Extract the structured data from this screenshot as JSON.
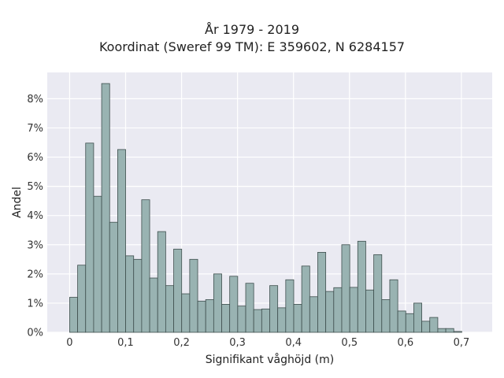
{
  "chart_data": {
    "type": "bar",
    "title_line1": "År 1979 - 2019",
    "title_line2": "Koordinat (Sweref 99 TM): E 359602, N 6284157",
    "xlabel": "Signifikant våghöjd (m)",
    "ylabel": "Andel",
    "x_ticks": [
      "0",
      "0,1",
      "0,2",
      "0,3",
      "0,4",
      "0,5",
      "0,6",
      "0,7"
    ],
    "y_ticks": [
      "0%",
      "1%",
      "2%",
      "3%",
      "4%",
      "5%",
      "6%",
      "7%",
      "8%"
    ],
    "xlim": [
      -0.04,
      0.755
    ],
    "ylim": [
      0,
      8.9
    ],
    "bin_width": 0.0143,
    "bin_start": 0,
    "values": [
      1.2,
      2.3,
      6.48,
      4.66,
      8.52,
      3.77,
      6.26,
      2.62,
      2.5,
      4.54,
      1.86,
      3.45,
      1.6,
      2.85,
      1.32,
      2.5,
      1.07,
      1.12,
      2.0,
      0.96,
      1.92,
      0.9,
      1.68,
      0.78,
      0.8,
      1.6,
      0.84,
      1.8,
      0.96,
      2.27,
      1.22,
      2.74,
      1.4,
      1.53,
      3.0,
      1.54,
      3.12,
      1.45,
      2.66,
      1.12,
      1.8,
      0.73,
      0.64,
      1.0,
      0.38,
      0.51,
      0.13,
      0.13,
      0.03
    ],
    "colors": {
      "bar": "#99b3b2",
      "bar_edge": "#3f4f4e",
      "plot_bg": "#eaeaf2",
      "grid": "#ffffff"
    }
  }
}
